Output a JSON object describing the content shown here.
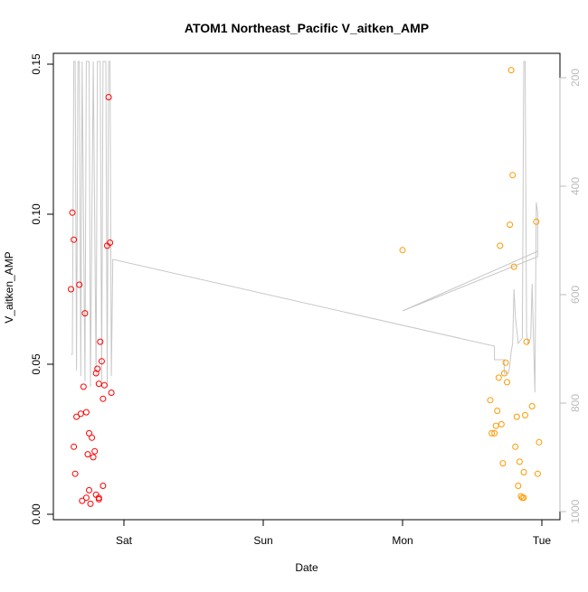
{
  "chart_data": {
    "type": "scatter",
    "title": "ATOM1 Northeast_Pacific V_aitken_AMP",
    "xlabel": "Date",
    "ylabel": "V_aitken_AMP",
    "y2label": "",
    "x_ticks": [
      {
        "label": "Sat",
        "value": 0
      },
      {
        "label": "Sun",
        "value": 1
      },
      {
        "label": "Mon",
        "value": 2
      },
      {
        "label": "Tue",
        "value": 3
      }
    ],
    "y_ticks": [
      "0.00",
      "0.05",
      "0.10",
      "0.15"
    ],
    "y2_ticks": [
      "200",
      "400",
      "600",
      "800",
      "1000"
    ],
    "xlim": [
      -0.43,
      3.05
    ],
    "ylim": [
      0,
      0.153
    ],
    "y2lim": [
      1020,
      180
    ],
    "y2_reversed": true,
    "grid": false,
    "colors": {
      "series1": "#ff0000",
      "series2": "#ff9900",
      "line": "#c8c8c8",
      "axis": "#000000",
      "axis2": "#bbbbbb"
    },
    "series": [
      {
        "color": "#ff0000",
        "points": [
          [
            -0.37,
            0.1005
          ],
          [
            -0.36,
            0.0915
          ],
          [
            -0.38,
            0.075
          ],
          [
            -0.32,
            0.0765
          ],
          [
            -0.28,
            0.067
          ],
          [
            -0.36,
            0.0225
          ],
          [
            -0.35,
            0.0135
          ],
          [
            -0.34,
            0.0325
          ],
          [
            -0.31,
            0.0335
          ],
          [
            -0.29,
            0.0425
          ],
          [
            -0.27,
            0.034
          ],
          [
            -0.26,
            0.02
          ],
          [
            -0.25,
            0.027
          ],
          [
            -0.23,
            0.0255
          ],
          [
            -0.22,
            0.019
          ],
          [
            -0.21,
            0.021
          ],
          [
            -0.2,
            0.047
          ],
          [
            -0.19,
            0.0485
          ],
          [
            -0.18,
            0.0435
          ],
          [
            -0.17,
            0.0575
          ],
          [
            -0.16,
            0.051
          ],
          [
            -0.15,
            0.0385
          ],
          [
            -0.14,
            0.043
          ],
          [
            -0.12,
            0.0895
          ],
          [
            -0.1,
            0.0905
          ],
          [
            -0.09,
            0.0405
          ],
          [
            -0.11,
            0.139
          ],
          [
            -0.3,
            0.0045
          ],
          [
            -0.27,
            0.0055
          ],
          [
            -0.25,
            0.008
          ],
          [
            -0.24,
            0.0035
          ],
          [
            -0.2,
            0.0065
          ],
          [
            -0.18,
            0.005
          ],
          [
            -0.18,
            0.0055
          ],
          [
            -0.15,
            0.0095
          ]
        ]
      },
      {
        "color": "#ff9900",
        "points": [
          [
            2.0,
            0.088
          ],
          [
            2.63,
            0.038
          ],
          [
            2.64,
            0.027
          ],
          [
            2.66,
            0.027
          ],
          [
            2.67,
            0.0295
          ],
          [
            2.68,
            0.0345
          ],
          [
            2.69,
            0.0455
          ],
          [
            2.7,
            0.0895
          ],
          [
            2.71,
            0.03
          ],
          [
            2.72,
            0.017
          ],
          [
            2.73,
            0.047
          ],
          [
            2.74,
            0.0505
          ],
          [
            2.75,
            0.044
          ],
          [
            2.77,
            0.0965
          ],
          [
            2.78,
            0.148
          ],
          [
            2.79,
            0.113
          ],
          [
            2.8,
            0.0825
          ],
          [
            2.81,
            0.0225
          ],
          [
            2.82,
            0.0325
          ],
          [
            2.83,
            0.0095
          ],
          [
            2.84,
            0.0175
          ],
          [
            2.85,
            0.006
          ],
          [
            2.86,
            0.0055
          ],
          [
            2.87,
            0.0055
          ],
          [
            2.87,
            0.014
          ],
          [
            2.88,
            0.033
          ],
          [
            2.89,
            0.0575
          ],
          [
            2.93,
            0.036
          ],
          [
            2.96,
            0.0975
          ],
          [
            2.97,
            0.0135
          ],
          [
            2.98,
            0.024
          ]
        ]
      }
    ],
    "line_y2": [
      [
        -0.38,
        710
      ],
      [
        -0.37,
        710
      ],
      [
        -0.36,
        170
      ],
      [
        -0.35,
        170
      ],
      [
        -0.34,
        740
      ],
      [
        -0.33,
        170
      ],
      [
        -0.32,
        170
      ],
      [
        -0.31,
        750
      ],
      [
        -0.3,
        170
      ],
      [
        -0.28,
        760
      ],
      [
        -0.27,
        170
      ],
      [
        -0.25,
        170
      ],
      [
        -0.24,
        770
      ],
      [
        -0.22,
        170
      ],
      [
        -0.2,
        750
      ],
      [
        -0.19,
        170
      ],
      [
        -0.17,
        170
      ],
      [
        -0.16,
        760
      ],
      [
        -0.15,
        170
      ],
      [
        -0.13,
        170
      ],
      [
        -0.12,
        770
      ],
      [
        -0.11,
        170
      ],
      [
        -0.1,
        170
      ],
      [
        -0.09,
        750
      ],
      [
        -0.08,
        535
      ],
      [
        2.66,
        695
      ],
      [
        2.66,
        720
      ],
      [
        2.73,
        720
      ],
      [
        2.73,
        745
      ],
      [
        2.76,
        745
      ],
      [
        2.77,
        730
      ],
      [
        2.78,
        705
      ],
      [
        2.79,
        690
      ],
      [
        2.8,
        590
      ],
      [
        2.81,
        640
      ],
      [
        2.83,
        690
      ],
      [
        2.86,
        680
      ],
      [
        2.87,
        170
      ],
      [
        2.88,
        170
      ],
      [
        2.89,
        670
      ],
      [
        2.9,
        690
      ],
      [
        2.92,
        680
      ],
      [
        2.93,
        580
      ],
      [
        2.95,
        780
      ],
      [
        2.96,
        430
      ],
      [
        2.97,
        450
      ],
      [
        2.97,
        530
      ],
      [
        2.0,
        630
      ],
      [
        2.97,
        520
      ]
    ]
  }
}
